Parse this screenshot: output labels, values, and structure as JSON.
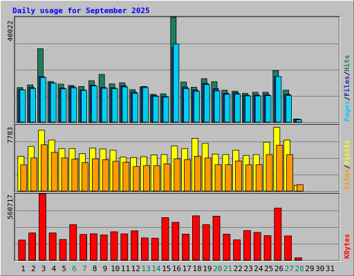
{
  "chart_data": {
    "type": "bar",
    "title": "Daily usage for September 2025",
    "days": [
      "1",
      "2",
      "3",
      "4",
      "5",
      "6",
      "7",
      "8",
      "9",
      "10",
      "11",
      "12",
      "13",
      "14",
      "15",
      "16",
      "17",
      "18",
      "19",
      "20",
      "21",
      "22",
      "23",
      "24",
      "25",
      "26",
      "27",
      "28",
      "29",
      "30",
      "31"
    ],
    "weekend_days": [
      "6",
      "7",
      "13",
      "14",
      "20",
      "21",
      "27",
      "28"
    ],
    "panels": {
      "hits_files_pages": {
        "max_label": "40022",
        "ylim": [
          0,
          40022
        ],
        "ylabel_parts": [
          "Pages",
          "/",
          "Files",
          "/",
          "Hits"
        ],
        "series": [
          {
            "name": "Hits",
            "color": "#1c8060",
            "values": [
              13200,
              14200,
              28000,
              15500,
              14500,
              14000,
              13600,
              15800,
              18200,
              14600,
              15000,
              12400,
              13400,
              10600,
              10800,
              40022,
              15300,
              13300,
              16600,
              15400,
              12200,
              11800,
              11000,
              11400,
              11400,
              19700,
              12200,
              1200,
              0,
              0,
              0
            ]
          },
          {
            "name": "Files",
            "color": "#2030b0",
            "values": [
              12400,
              13300,
              17400,
              15000,
              13000,
              13500,
              12300,
              14100,
              13300,
              13100,
              13900,
              11500,
              13600,
              10200,
              9800,
              28500,
              13400,
              12300,
              14800,
              12800,
              11000,
              11200,
              10300,
              10400,
              10500,
              17400,
              10600,
              1100,
              0,
              0,
              0
            ]
          },
          {
            "name": "Pages",
            "color": "#00d0f0",
            "values": [
              12300,
              12800,
              17000,
              14900,
              12700,
              13100,
              12100,
              13800,
              12900,
              12800,
              13400,
              11000,
              13200,
              9800,
              9500,
              29800,
              12800,
              11800,
              14300,
              11900,
              10600,
              10700,
              10000,
              10000,
              10100,
              17400,
              10200,
              900,
              0,
              0,
              0
            ]
          }
        ]
      },
      "visits_sites": {
        "max_label": "7783",
        "ylim": [
          0,
          7783
        ],
        "ylabel_parts": [
          "Sites",
          "/",
          "Visits"
        ],
        "series": [
          {
            "name": "Visits",
            "color": "#ffff00",
            "values": [
              4100,
              5250,
              7150,
              6000,
              5000,
              5000,
              4400,
              5050,
              4950,
              4800,
              4000,
              3950,
              4050,
              4250,
              4300,
              5300,
              5000,
              6200,
              5600,
              4350,
              4300,
              4800,
              4200,
              4300,
              5750,
              7500,
              6000,
              700,
              0,
              0,
              0
            ]
          },
          {
            "name": "Sites",
            "color": "#ff9a00",
            "values": [
              3100,
              3900,
              5450,
              4550,
              3900,
              3750,
              3350,
              3800,
              3700,
              3500,
              3400,
              2900,
              3000,
              3000,
              3200,
              3800,
              3700,
              4100,
              3900,
              3100,
              3100,
              3550,
              3100,
              3100,
              4300,
              5400,
              4300,
              750,
              0,
              0,
              0
            ]
          }
        ]
      },
      "kbytes": {
        "max_label": "560717",
        "ylim": [
          0,
          560717
        ],
        "ylabel_parts": [
          "KBytes"
        ],
        "series": [
          {
            "name": "KBytes",
            "color": "#ff0000",
            "values": [
              170000,
              230000,
              560717,
              230000,
              175000,
              300000,
              217000,
              223000,
              213000,
              240000,
              222000,
              248000,
              188000,
              186000,
              360000,
              320000,
              220000,
              375000,
              300000,
              372000,
              220000,
              172000,
              250000,
              235000,
              208000,
              440000,
              205000,
              20000,
              0,
              0,
              0
            ]
          }
        ]
      }
    }
  }
}
